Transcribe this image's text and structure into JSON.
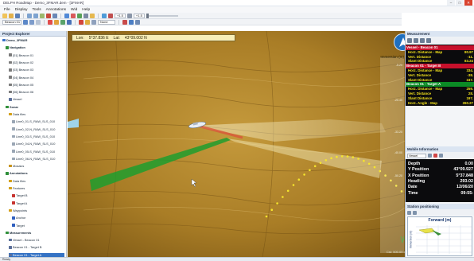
{
  "window": {
    "title": "DELPH RoadMap - Demo_3FMAR.dem - [3FMAR]",
    "buttons": [
      "–",
      "□",
      "✕"
    ]
  },
  "menu": [
    "File",
    "Display",
    "Tools",
    "Annotations",
    "Wid",
    "Help"
  ],
  "toolbar": {
    "combos": [
      "+1.5",
      "+1.5",
      "None"
    ],
    "combo2": "Beacon 01",
    "accent": "#3a72c8"
  },
  "project": {
    "header": "Project Explorer",
    "rows": [
      {
        "label": "Demo_3FMAR",
        "indent": 0,
        "head": true,
        "icon": "#3a72c8"
      },
      {
        "label": "Navigation",
        "indent": 1,
        "head": true,
        "icon": "#2f8f3a"
      },
      {
        "label": "[01] Beacon 01",
        "indent": 2,
        "icon": "#7b7b7b"
      },
      {
        "label": "[02] Beacon 02",
        "indent": 2,
        "icon": "#7b7b7b"
      },
      {
        "label": "[03] Beacon 03",
        "indent": 2,
        "icon": "#7b7b7b"
      },
      {
        "label": "[04] Beacon 04",
        "indent": 2,
        "icon": "#7b7b7b"
      },
      {
        "label": "[05] Beacon 05",
        "indent": 2,
        "icon": "#7b7b7b"
      },
      {
        "label": "[06] Beacon 06",
        "indent": 2,
        "icon": "#7b7b7b"
      },
      {
        "label": "Vessel",
        "indent": 2,
        "icon": "#5b6f9a"
      },
      {
        "label": "Sonar",
        "indent": 1,
        "head": true,
        "icon": "#2f8f3a"
      },
      {
        "label": "Data files",
        "indent": 2,
        "icon": "#d4a018"
      },
      {
        "label": "Line0_01-S_RAW_SLS_010",
        "indent": 3,
        "icon": "#9aa6b4"
      },
      {
        "label": "Line0_02-N_RAW_SLS_010",
        "indent": 3,
        "icon": "#9aa6b4"
      },
      {
        "label": "Line0_03-S_RAW_SLS_010",
        "indent": 3,
        "icon": "#9aa6b4"
      },
      {
        "label": "Line0_04-N_RAW_SLS_010",
        "indent": 3,
        "icon": "#9aa6b4"
      },
      {
        "label": "Line0_05-S_RAW_SLS_010",
        "indent": 3,
        "icon": "#9aa6b4"
      },
      {
        "label": "Line0_06-N_RAW_SLS_010",
        "indent": 3,
        "icon": "#9aa6b4"
      },
      {
        "label": "Mosaics",
        "indent": 2,
        "icon": "#c7931c"
      },
      {
        "label": "Annotations",
        "indent": 1,
        "head": true,
        "icon": "#2f8f3a"
      },
      {
        "label": "Data files",
        "indent": 2,
        "icon": "#d4a018"
      },
      {
        "label": "Features",
        "indent": 2,
        "icon": "#d4a018"
      },
      {
        "label": "Target B",
        "indent": 3,
        "icon": "#c7332f"
      },
      {
        "label": "Target A",
        "indent": 3,
        "icon": "#c7332f"
      },
      {
        "label": "Waypoints",
        "indent": 2,
        "icon": "#d4a018"
      },
      {
        "label": "Anchor",
        "indent": 3,
        "icon": "#2e5fbf"
      },
      {
        "label": "Target",
        "indent": 3,
        "icon": "#2e5fbf"
      },
      {
        "label": "Measurements",
        "indent": 1,
        "head": true,
        "icon": "#2f8f3a"
      },
      {
        "label": "Vessel - Beacon 01",
        "indent": 2,
        "icon": "#5b6f9a"
      },
      {
        "label": "Beacon 01 - Target B",
        "indent": 2,
        "icon": "#5b6f9a"
      },
      {
        "label": "Beacon 01 - Target A",
        "indent": 2,
        "icon": "#5b6f9a",
        "selected": true
      }
    ]
  },
  "map": {
    "lon_label": "Lon:",
    "lon_value": "5°37.836 E",
    "lat_label": "Lat:",
    "lat_value": "43°09.002 N",
    "scale_title": "Immersion (m)",
    "scale_ticks": [
      "-5.20",
      "-20.40",
      "-33.20",
      "-40.00",
      "-50.20"
    ],
    "scale_hint": "Cst: 500.00 dt",
    "north_icon": "north-arrow-icon"
  },
  "measurements": {
    "header": "Measurement",
    "groups": [
      {
        "label": "Vessel - Beacon 01",
        "color": "red",
        "items": [
          {
            "k": "Horz. Distance - Map",
            "v": "80.97"
          },
          {
            "k": "Vert. Distance",
            "v": "-11."
          },
          {
            "k": "Slant Distance",
            "v": "83.24"
          }
        ]
      },
      {
        "label": "Beacon 01 - Target B",
        "color": "red",
        "items": [
          {
            "k": "Horz. Distance - Map",
            "v": "334."
          },
          {
            "k": "Vert. Distance",
            "v": "-38."
          },
          {
            "k": "Slant Distance",
            "v": "247."
          }
        ]
      },
      {
        "label": "Beacon 01 - Target A",
        "color": "green",
        "items": [
          {
            "k": "Horz. Distance - Map",
            "v": "259."
          },
          {
            "k": "Vert. Distance",
            "v": "28."
          },
          {
            "k": "Slant Distance",
            "v": "197."
          },
          {
            "k": "Horz. Angle - Map",
            "v": "260.27"
          }
        ]
      }
    ]
  },
  "mobile": {
    "header": "Mobile Information",
    "combo": "Vessel",
    "rows": [
      {
        "k": "Depth",
        "v": "0.00"
      },
      {
        "k": "Y Position",
        "v": "43°09.927"
      },
      {
        "k": "X Position",
        "v": "5°37.848"
      },
      {
        "k": "Heading",
        "v": "293.02"
      },
      {
        "k": "Date",
        "v": "12/06/20"
      },
      {
        "k": "Time",
        "v": "09:55:"
      }
    ]
  },
  "forward": {
    "header": "Station positioning",
    "title": "Forward (m)",
    "ylabel": "Immersion (m)"
  },
  "statusbar": "Ready"
}
